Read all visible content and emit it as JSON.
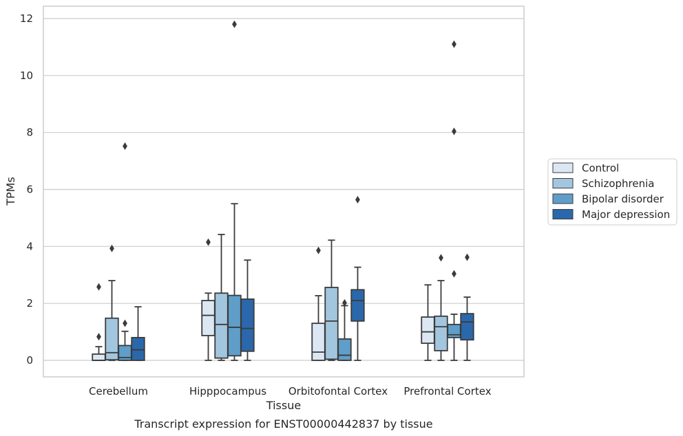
{
  "chart_data": {
    "type": "box",
    "xlabel": "Tissue",
    "ylabel": "TPMs",
    "caption": "Transcript expression for ENST00000442837 by tissue",
    "ylim": [
      -0.6,
      12.4
    ],
    "yticks": [
      0,
      2,
      4,
      6,
      8,
      10,
      12
    ],
    "grid": "horizontal",
    "legend_position": "right",
    "categories": [
      "Cerebellum",
      "Hipppocampus",
      "Orbitofontal Cortex",
      "Prefrontal Cortex"
    ],
    "series": [
      {
        "name": "Control",
        "color": "#dbe7f3",
        "boxes": [
          {
            "q1": 0.0,
            "median": 0.0,
            "q3": 0.22,
            "whislo": 0.0,
            "whishi": 0.48,
            "fliers": [
              0.83,
              2.58
            ]
          },
          {
            "q1": 0.87,
            "median": 1.58,
            "q3": 2.1,
            "whislo": 0.0,
            "whishi": 2.36,
            "fliers": [
              4.15
            ]
          },
          {
            "q1": 0.0,
            "median": 0.29,
            "q3": 1.3,
            "whislo": 0.0,
            "whishi": 2.27,
            "fliers": [
              3.86
            ]
          },
          {
            "q1": 0.6,
            "median": 1.0,
            "q3": 1.52,
            "whislo": 0.0,
            "whishi": 2.65,
            "fliers": []
          }
        ]
      },
      {
        "name": "Schizophrenia",
        "color": "#a3c6df",
        "boxes": [
          {
            "q1": 0.02,
            "median": 0.27,
            "q3": 1.48,
            "whislo": 0.0,
            "whishi": 2.8,
            "fliers": [
              3.93
            ]
          },
          {
            "q1": 0.08,
            "median": 1.26,
            "q3": 2.36,
            "whislo": 0.0,
            "whishi": 4.42,
            "fliers": []
          },
          {
            "q1": 0.04,
            "median": 1.38,
            "q3": 2.56,
            "whislo": 0.0,
            "whishi": 4.22,
            "fliers": []
          },
          {
            "q1": 0.34,
            "median": 1.18,
            "q3": 1.55,
            "whislo": 0.0,
            "whishi": 2.8,
            "fliers": [
              3.6
            ]
          }
        ]
      },
      {
        "name": "Bipolar disorder",
        "color": "#5f9ec9",
        "boxes": [
          {
            "q1": 0.0,
            "median": 0.1,
            "q3": 0.52,
            "whislo": 0.0,
            "whishi": 1.02,
            "fliers": [
              1.3,
              7.52
            ]
          },
          {
            "q1": 0.16,
            "median": 1.16,
            "q3": 2.28,
            "whislo": 0.0,
            "whishi": 5.5,
            "fliers": [
              11.8
            ]
          },
          {
            "q1": 0.0,
            "median": 0.18,
            "q3": 0.75,
            "whislo": 0.0,
            "whishi": 1.92,
            "fliers": [
              2.02
            ]
          },
          {
            "q1": 0.8,
            "median": 0.9,
            "q3": 1.26,
            "whislo": 0.0,
            "whishi": 1.62,
            "fliers": [
              3.04,
              8.04,
              11.1
            ]
          }
        ]
      },
      {
        "name": "Major depression",
        "color": "#2a68ab",
        "boxes": [
          {
            "q1": 0.0,
            "median": 0.37,
            "q3": 0.8,
            "whislo": 0.0,
            "whishi": 1.88,
            "fliers": []
          },
          {
            "q1": 0.32,
            "median": 1.12,
            "q3": 2.15,
            "whislo": 0.0,
            "whishi": 3.52,
            "fliers": []
          },
          {
            "q1": 1.38,
            "median": 2.1,
            "q3": 2.48,
            "whislo": 0.0,
            "whishi": 3.27,
            "fliers": [
              5.64
            ]
          },
          {
            "q1": 0.72,
            "median": 1.35,
            "q3": 1.64,
            "whislo": 0.0,
            "whishi": 2.22,
            "fliers": [
              3.62
            ]
          }
        ]
      }
    ]
  }
}
